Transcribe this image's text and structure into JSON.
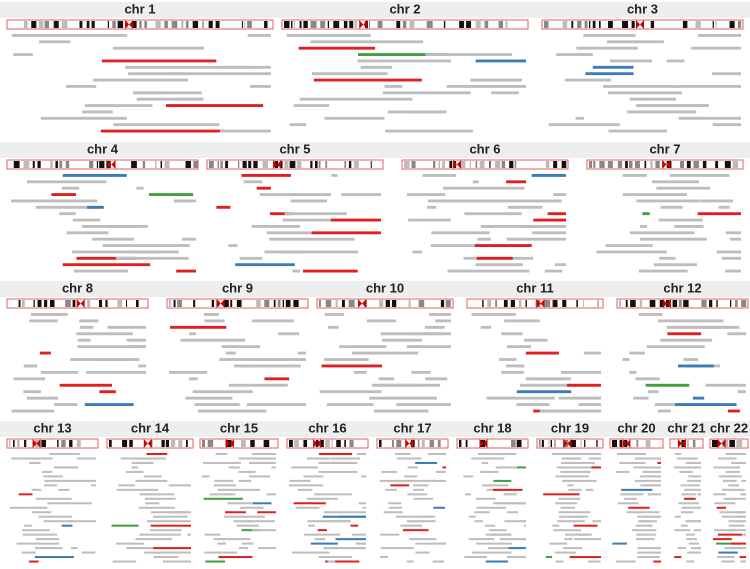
{
  "panels": [
    {
      "title": "chr 1"
    },
    {
      "title": "chr 2"
    },
    {
      "title": "chr 3"
    },
    {
      "title": "chr 4"
    },
    {
      "title": "chr 5"
    },
    {
      "title": "chr 6"
    },
    {
      "title": "chr 7"
    },
    {
      "title": "chr 8"
    },
    {
      "title": "chr 9"
    },
    {
      "title": "chr 10"
    },
    {
      "title": "chr 11"
    },
    {
      "title": "chr 12"
    },
    {
      "title": "chr 13"
    },
    {
      "title": "chr 14"
    },
    {
      "title": "chr 15"
    },
    {
      "title": "chr 16"
    },
    {
      "title": "chr 17"
    },
    {
      "title": "chr 18"
    },
    {
      "title": "chr 19"
    },
    {
      "title": "chr 20"
    },
    {
      "title": "chr 21"
    },
    {
      "title": "chr 22"
    }
  ]
}
